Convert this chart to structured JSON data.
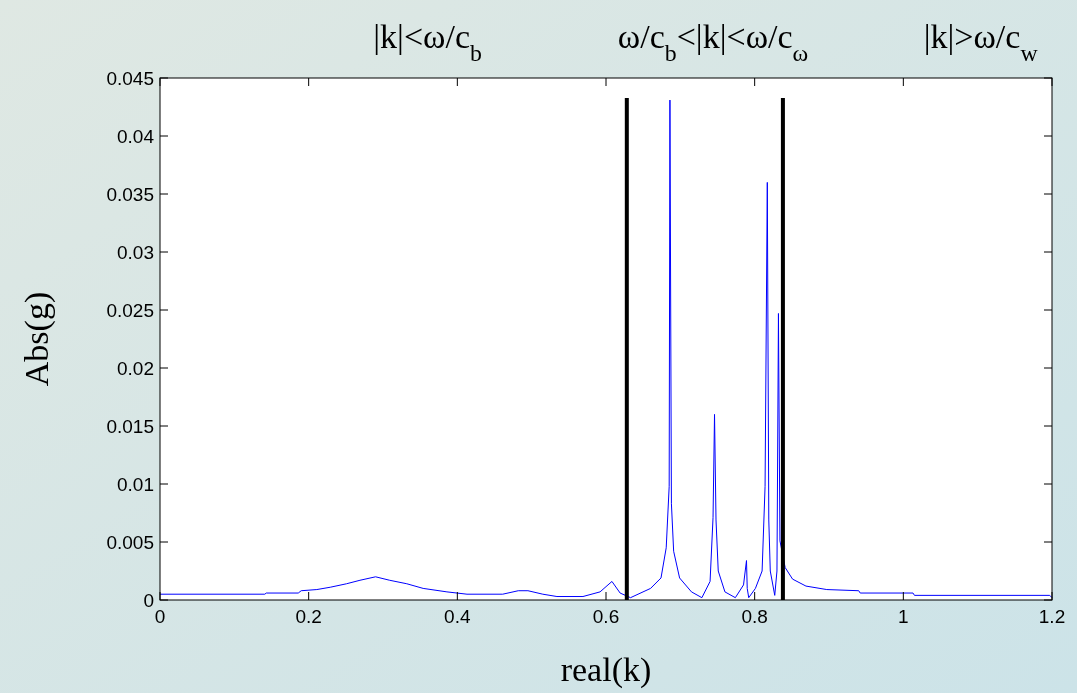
{
  "chart_data": {
    "type": "line",
    "xlabel": "real(k)",
    "ylabel": "Abs(g)",
    "annotations": [
      "|k|<ω/c$_{b}$",
      "ω/c$_{b}$<|k|<ω/c$_{ω}$",
      "|k|>ω/c$_{w}$"
    ],
    "series": [
      {
        "color": "#0000ff",
        "x": [
          0,
          0.141,
          0.143,
          0.186,
          0.19,
          0.211,
          0.229,
          0.251,
          0.269,
          0.29,
          0.309,
          0.332,
          0.354,
          0.386,
          0.413,
          0.461,
          0.482,
          0.495,
          0.515,
          0.534,
          0.569,
          0.592,
          0.608,
          0.619,
          0.633,
          0.66,
          0.674,
          0.681,
          0.685,
          0.686,
          0.688,
          0.691,
          0.699,
          0.715,
          0.729,
          0.74,
          0.744,
          0.746,
          0.748,
          0.751,
          0.76,
          0.774,
          0.785,
          0.789,
          0.79,
          0.792,
          0.801,
          0.81,
          0.814,
          0.817,
          0.819,
          0.821,
          0.827,
          0.83,
          0.832,
          0.834,
          0.841,
          0.851,
          0.869,
          0.897,
          0.94,
          0.942,
          1.013,
          1.015,
          1.197,
          1.2
        ],
        "values": [
          0.0005,
          0.0005,
          0.0006,
          0.0006,
          0.0008,
          0.0009,
          0.0011,
          0.0014,
          0.0017,
          0.002,
          0.0017,
          0.0014,
          0.001,
          0.0007,
          0.0005,
          0.0005,
          0.0008,
          0.0008,
          0.0005,
          0.0003,
          0.0003,
          0.0007,
          0.0016,
          0.0006,
          0.0002,
          0.001,
          0.0019,
          0.0045,
          0.0098,
          0.0431,
          0.0083,
          0.0042,
          0.0019,
          0.0007,
          0.0002,
          0.0016,
          0.0071,
          0.016,
          0.0069,
          0.0025,
          0.0007,
          0.0002,
          0.0013,
          0.0034,
          0.001,
          0.0002,
          0.001,
          0.0025,
          0.0098,
          0.036,
          0.0069,
          0.0025,
          0.0004,
          0.0025,
          0.0247,
          0.0051,
          0.0028,
          0.0018,
          0.0012,
          0.0009,
          0.0008,
          0.0006,
          0.0006,
          0.0004,
          0.0004,
          0.0002
        ]
      }
    ],
    "ref_lines": [
      {
        "axis": "x",
        "value": 0.628,
        "color": "#000000"
      },
      {
        "axis": "x",
        "value": 0.838,
        "color": "#000000"
      }
    ],
    "xlim": [
      0,
      1.2
    ],
    "xticks": [
      0,
      0.2,
      0.4,
      0.6,
      0.8,
      1,
      1.2
    ],
    "ylim": [
      0,
      0.045
    ],
    "yticks": [
      0,
      0.005,
      0.01,
      0.015,
      0.02,
      0.025,
      0.03,
      0.035,
      0.04,
      0.045
    ],
    "grid": false,
    "line_style": "solid"
  }
}
